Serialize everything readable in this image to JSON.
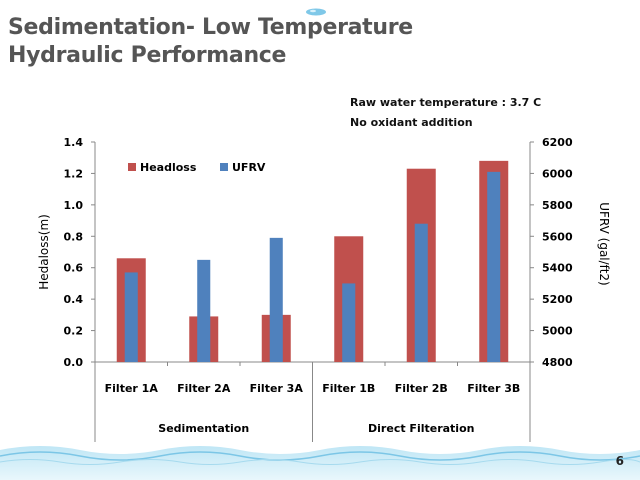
{
  "slide": {
    "title_line1": "Sedimentation- Low Temperature",
    "title_line2": "Hydraulic Performance",
    "note_line1": "Raw water temperature : 3.7 C",
    "note_line2": "No oxidant addition",
    "page_number": "6"
  },
  "chart_data": {
    "type": "bar",
    "categories": [
      "Filter 1A",
      "Filter 2A",
      "Filter 3A",
      "Filter 1B",
      "Filter 2B",
      "Filter 3B"
    ],
    "groups": [
      {
        "label": "Sedimentation",
        "categories": [
          "Filter 1A",
          "Filter 2A",
          "Filter 3A"
        ]
      },
      {
        "label": "Direct Filteration",
        "categories": [
          "Filter 1B",
          "Filter 2B",
          "Filter 3B"
        ]
      }
    ],
    "series": [
      {
        "name": "Headloss",
        "axis": "left",
        "color": "#c0504d",
        "values": [
          0.66,
          0.29,
          0.3,
          0.8,
          1.23,
          1.28
        ]
      },
      {
        "name": "UFRV",
        "axis": "right",
        "color": "#4f81bd",
        "values": [
          5370,
          5450,
          5590,
          5300,
          5680,
          6010
        ]
      }
    ],
    "ylabel": "Hedaloss(m)",
    "y2label": "UFRV (gal/ft2)",
    "ylim": [
      0.0,
      1.4
    ],
    "y2lim": [
      4800,
      6200
    ],
    "yticks": [
      "0.0",
      "0.2",
      "0.4",
      "0.6",
      "0.8",
      "1.0",
      "1.2",
      "1.4"
    ],
    "y2ticks": [
      "4800",
      "5000",
      "5200",
      "5400",
      "5600",
      "5800",
      "6000",
      "6200"
    ],
    "legend_position": "top-left",
    "grid": false
  }
}
